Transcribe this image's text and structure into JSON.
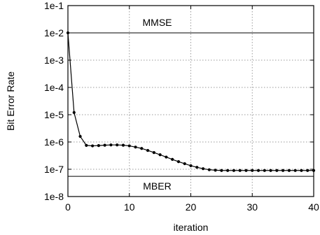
{
  "chart_data": {
    "type": "line",
    "title": "",
    "xlabel": "iteration",
    "ylabel": "Bit Error Rate",
    "xlim": [
      0,
      40
    ],
    "ylim": [
      1e-08,
      0.1
    ],
    "yscale": "log",
    "grid": true,
    "x_ticks": [
      0,
      10,
      20,
      30,
      40
    ],
    "x_tick_labels": [
      "0",
      "10",
      "20",
      "30",
      "40"
    ],
    "y_ticks": [
      1e-08,
      1e-07,
      1e-06,
      1e-05,
      0.0001,
      0.001,
      0.01,
      0.1
    ],
    "y_tick_labels": [
      "1e-8",
      "1e-7",
      "1e-6",
      "1e-5",
      "1e-4",
      "1e-3",
      "1e-2",
      "1e-1"
    ],
    "reference_lines": [
      {
        "label": "MMSE",
        "y": 0.01
      },
      {
        "label": "MBER",
        "y": 5.5e-08
      }
    ],
    "series": [
      {
        "x": [
          0,
          1,
          2,
          3,
          4,
          5,
          6,
          7,
          8,
          9,
          10,
          11,
          12,
          13,
          14,
          15,
          16,
          17,
          18,
          19,
          20,
          21,
          22,
          23,
          24,
          25,
          26,
          27,
          28,
          29,
          30,
          31,
          32,
          33,
          34,
          35,
          36,
          37,
          38,
          39,
          40
        ],
        "values": [
          0.01,
          1.2e-05,
          1.6e-06,
          7.5e-07,
          7.2e-07,
          7.4e-07,
          7.6e-07,
          7.8e-07,
          7.8e-07,
          7.6e-07,
          7.2e-07,
          6.5e-07,
          5.8e-07,
          4.9e-07,
          4.1e-07,
          3.4e-07,
          2.8e-07,
          2.3e-07,
          1.9e-07,
          1.6e-07,
          1.35e-07,
          1.18e-07,
          1.05e-07,
          9.6e-08,
          9.2e-08,
          9e-08,
          9e-08,
          9e-08,
          9e-08,
          9e-08,
          9e-08,
          9e-08,
          9e-08,
          9e-08,
          9e-08,
          9e-08,
          9e-08,
          9e-08,
          9e-08,
          9e-08,
          9e-08
        ]
      }
    ]
  }
}
